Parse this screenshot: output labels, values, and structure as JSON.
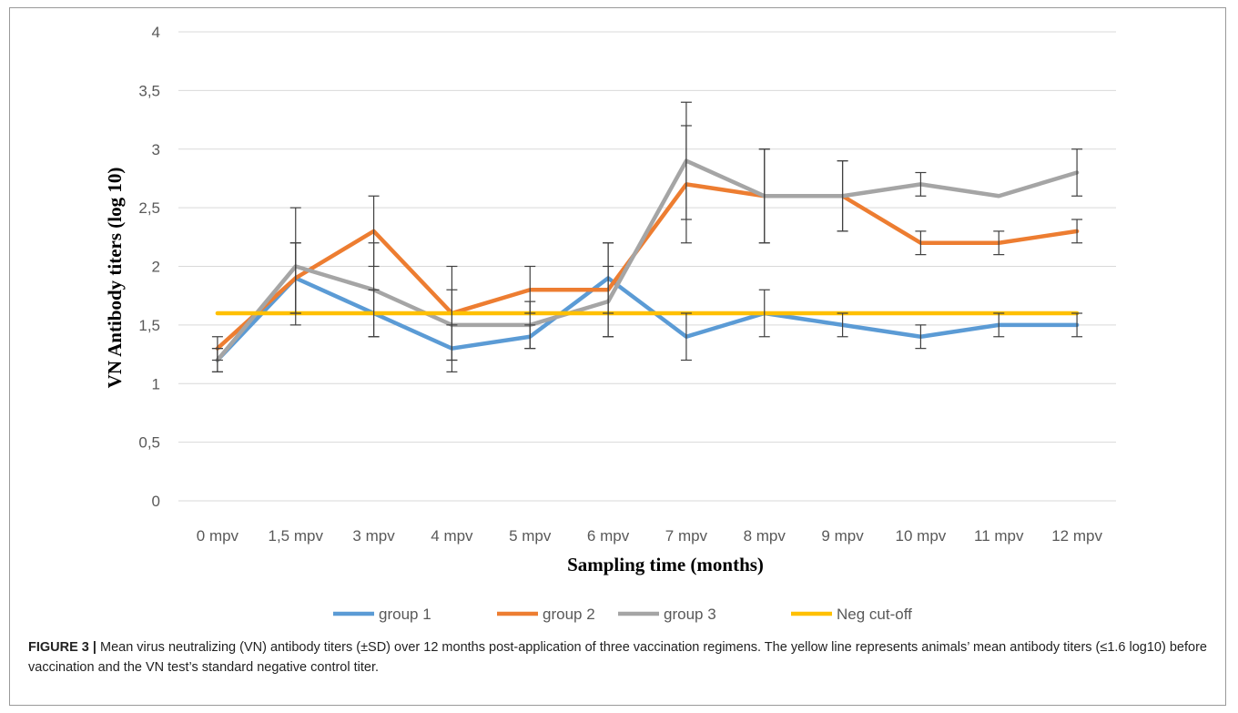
{
  "chart_data": {
    "type": "line",
    "categories": [
      "0 mpv",
      "1,5 mpv",
      "3 mpv",
      "4 mpv",
      "5 mpv",
      "6 mpv",
      "7 mpv",
      "8 mpv",
      "9 mpv",
      "10 mpv",
      "11 mpv",
      "12 mpv"
    ],
    "ylim": [
      0,
      4
    ],
    "yticks": [
      0,
      0.5,
      1,
      1.5,
      2,
      2.5,
      3,
      3.5,
      4
    ],
    "ytick_labels": [
      "0",
      "0,5",
      "1",
      "1,5",
      "2",
      "2,5",
      "3",
      "3,5",
      "4"
    ],
    "xlabel": "Sampling time (months)",
    "ylabel": "VN  Antibody titers (log 10)",
    "grid": "horizontal",
    "legend_position": "bottom",
    "series": [
      {
        "name": "group 1",
        "color": "#5b9bd5",
        "values": [
          1.2,
          1.9,
          1.6,
          1.3,
          1.4,
          1.9,
          1.4,
          1.6,
          1.5,
          1.4,
          1.5,
          1.5
        ],
        "err": [
          0.1,
          0.3,
          0.2,
          0.2,
          0.1,
          0.3,
          0.2,
          0.2,
          0.1,
          0.1,
          0.1,
          0.1
        ]
      },
      {
        "name": "group 2",
        "color": "#ed7d31",
        "values": [
          1.3,
          1.9,
          2.3,
          1.6,
          1.8,
          1.8,
          2.7,
          2.6,
          2.6,
          2.2,
          2.2,
          2.3
        ],
        "err": [
          0.1,
          0.3,
          0.3,
          0.4,
          0.2,
          0.4,
          0.5,
          0.4,
          0.3,
          0.1,
          0.1,
          0.1
        ]
      },
      {
        "name": "group 3",
        "color": "#a5a5a5",
        "values": [
          1.2,
          2.0,
          1.8,
          1.5,
          1.5,
          1.7,
          2.9,
          2.6,
          2.6,
          2.7,
          2.6,
          2.8
        ],
        "err": [
          0.1,
          0.5,
          0.4,
          0.3,
          0.2,
          0.3,
          0.5,
          0.4,
          0.3,
          0.1,
          0.0,
          0.2
        ]
      },
      {
        "name": "Neg cut-off",
        "color": "#ffc000",
        "values": [
          1.6,
          1.6,
          1.6,
          1.6,
          1.6,
          1.6,
          1.6,
          1.6,
          1.6,
          1.6,
          1.6,
          1.6
        ]
      }
    ]
  },
  "caption": {
    "label": "FIGURE 3 |",
    "text": " Mean virus neutralizing (VN) antibody titers (±SD) over 12 months post-application of three vaccination regimens. The yellow line represents animals’ mean antibody titers (≤1.6 log10) before vaccination and the VN test’s standard negative control titer."
  }
}
